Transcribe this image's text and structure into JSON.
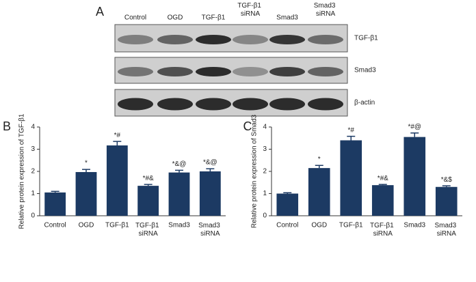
{
  "blot": {
    "label": "A",
    "lanes": [
      "Control",
      "OGD",
      "TGF-β1",
      "TGF-β1 siRNA",
      "Smad3",
      "Smad3 siRNA"
    ],
    "rows": [
      "TGF-β1",
      "Smad3",
      "β-actin"
    ]
  },
  "chart_data": [
    {
      "type": "bar",
      "panel_label": "B",
      "ylabel": "Relative protein expression of TGF-β1",
      "categories": [
        "Control",
        "OGD",
        "TGF-β1",
        "TGF-β1 siRNA",
        "Smad3",
        "Smad3 siRNA"
      ],
      "values": [
        1.05,
        1.97,
        3.17,
        1.35,
        1.95,
        2.0
      ],
      "errors": [
        0.05,
        0.12,
        0.18,
        0.06,
        0.1,
        0.12
      ],
      "annotations": [
        "",
        "*",
        "*#",
        "*#&",
        "*&@",
        "*&@"
      ],
      "color": "#1c3a63",
      "ylim": [
        0,
        4
      ],
      "yticks": [
        0,
        1,
        2,
        3,
        4
      ]
    },
    {
      "type": "bar",
      "panel_label": "C",
      "ylabel": "Relative protein expression of Smad3",
      "categories": [
        "Control",
        "OGD",
        "TGF-β1",
        "TGF-β1 siRNA",
        "Smad3",
        "Smad3 siRNA"
      ],
      "values": [
        1.0,
        2.15,
        3.4,
        1.38,
        3.55,
        1.3
      ],
      "errors": [
        0.04,
        0.12,
        0.18,
        0.03,
        0.18,
        0.05
      ],
      "annotations": [
        "",
        "*",
        "*#",
        "*#&",
        "*#@",
        "*&$"
      ],
      "color": "#1c3a63",
      "ylim": [
        0,
        4
      ],
      "yticks": [
        0,
        1,
        2,
        3,
        4
      ]
    }
  ]
}
